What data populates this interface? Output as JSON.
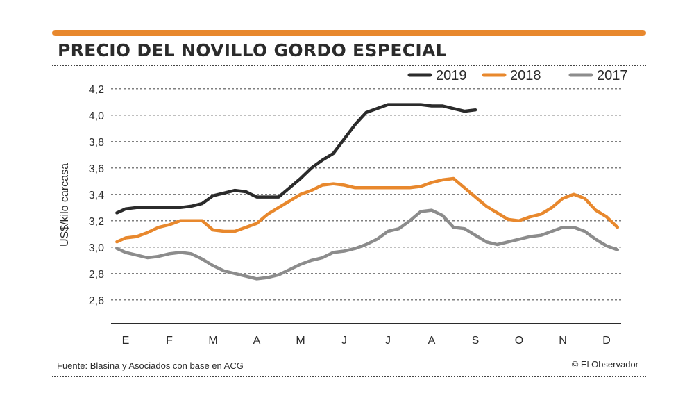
{
  "header": {
    "title": "PRECIO DEL NOVILLO GORDO ESPECIAL"
  },
  "footer": {
    "source": "Fuente: Blasina y Asociados con base en ACG",
    "credit": "© El Observador"
  },
  "chart_data": {
    "type": "line",
    "title": "PRECIO DEL NOVILLO GORDO ESPECIAL",
    "xlabel": "",
    "ylabel": "US$/kilo carcasa",
    "categories": [
      "E",
      "F",
      "M",
      "A",
      "M",
      "J",
      "J",
      "A",
      "S",
      "O",
      "N",
      "D"
    ],
    "yticks": [
      "4,2",
      "4,0",
      "3,8",
      "3,6",
      "3,4",
      "3,2",
      "3,0",
      "2,8",
      "2,6"
    ],
    "ytick_values": [
      4.2,
      4.0,
      3.8,
      3.6,
      3.4,
      3.2,
      3.0,
      2.8,
      2.6
    ],
    "ylim": [
      2.42,
      4.22
    ],
    "xlim": [
      0,
      11
    ],
    "grid": true,
    "legend_position": "top-right",
    "series": [
      {
        "name": "2019",
        "color": "#2b2b2b",
        "x": [
          -0.2,
          0.0,
          0.25,
          0.5,
          0.75,
          1.0,
          1.25,
          1.5,
          1.75,
          2.0,
          2.25,
          2.5,
          2.75,
          3.0,
          3.25,
          3.5,
          3.75,
          4.0,
          4.25,
          4.5,
          4.75,
          5.0,
          5.25,
          5.5,
          5.75,
          6.0,
          6.25,
          6.5,
          6.75,
          7.0,
          7.25,
          7.5,
          7.75,
          8.0
        ],
        "values": [
          3.26,
          3.29,
          3.3,
          3.3,
          3.3,
          3.3,
          3.3,
          3.31,
          3.33,
          3.39,
          3.41,
          3.43,
          3.42,
          3.38,
          3.38,
          3.38,
          3.45,
          3.52,
          3.6,
          3.66,
          3.71,
          3.82,
          3.93,
          4.02,
          4.05,
          4.08,
          4.08,
          4.08,
          4.08,
          4.07,
          4.07,
          4.05,
          4.03,
          4.04
        ]
      },
      {
        "name": "2018",
        "color": "#e8882d",
        "x": [
          -0.2,
          0.0,
          0.25,
          0.5,
          0.75,
          1.0,
          1.25,
          1.5,
          1.75,
          2.0,
          2.25,
          2.5,
          2.75,
          3.0,
          3.25,
          3.5,
          3.75,
          4.0,
          4.25,
          4.5,
          4.75,
          5.0,
          5.25,
          5.5,
          5.75,
          6.0,
          6.25,
          6.5,
          6.75,
          7.0,
          7.25,
          7.5,
          7.75,
          8.0,
          8.25,
          8.5,
          8.75,
          9.0,
          9.25,
          9.5,
          9.75,
          10.0,
          10.25,
          10.5,
          10.75,
          11.0,
          11.25
        ],
        "values": [
          3.04,
          3.07,
          3.08,
          3.11,
          3.15,
          3.17,
          3.2,
          3.2,
          3.2,
          3.13,
          3.12,
          3.12,
          3.15,
          3.18,
          3.25,
          3.3,
          3.35,
          3.4,
          3.43,
          3.47,
          3.48,
          3.47,
          3.45,
          3.45,
          3.45,
          3.45,
          3.45,
          3.45,
          3.46,
          3.49,
          3.51,
          3.52,
          3.45,
          3.38,
          3.31,
          3.26,
          3.21,
          3.2,
          3.23,
          3.25,
          3.3,
          3.37,
          3.4,
          3.37,
          3.28,
          3.23,
          3.15
        ]
      },
      {
        "name": "2017",
        "color": "#8c8c8c",
        "x": [
          -0.2,
          0.0,
          0.25,
          0.5,
          0.75,
          1.0,
          1.25,
          1.5,
          1.75,
          2.0,
          2.25,
          2.5,
          2.75,
          3.0,
          3.25,
          3.5,
          3.75,
          4.0,
          4.25,
          4.5,
          4.75,
          5.0,
          5.25,
          5.5,
          5.75,
          6.0,
          6.25,
          6.5,
          6.75,
          7.0,
          7.25,
          7.5,
          7.75,
          8.0,
          8.25,
          8.5,
          8.75,
          9.0,
          9.25,
          9.5,
          9.75,
          10.0,
          10.25,
          10.5,
          10.75,
          11.0,
          11.25
        ],
        "values": [
          2.99,
          2.96,
          2.94,
          2.92,
          2.93,
          2.95,
          2.96,
          2.95,
          2.91,
          2.86,
          2.82,
          2.8,
          2.78,
          2.76,
          2.77,
          2.79,
          2.83,
          2.87,
          2.9,
          2.92,
          2.96,
          2.97,
          2.99,
          3.02,
          3.06,
          3.12,
          3.14,
          3.2,
          3.27,
          3.28,
          3.24,
          3.15,
          3.14,
          3.09,
          3.04,
          3.02,
          3.04,
          3.06,
          3.08,
          3.09,
          3.12,
          3.15,
          3.15,
          3.12,
          3.06,
          3.01,
          2.98
        ]
      }
    ]
  }
}
